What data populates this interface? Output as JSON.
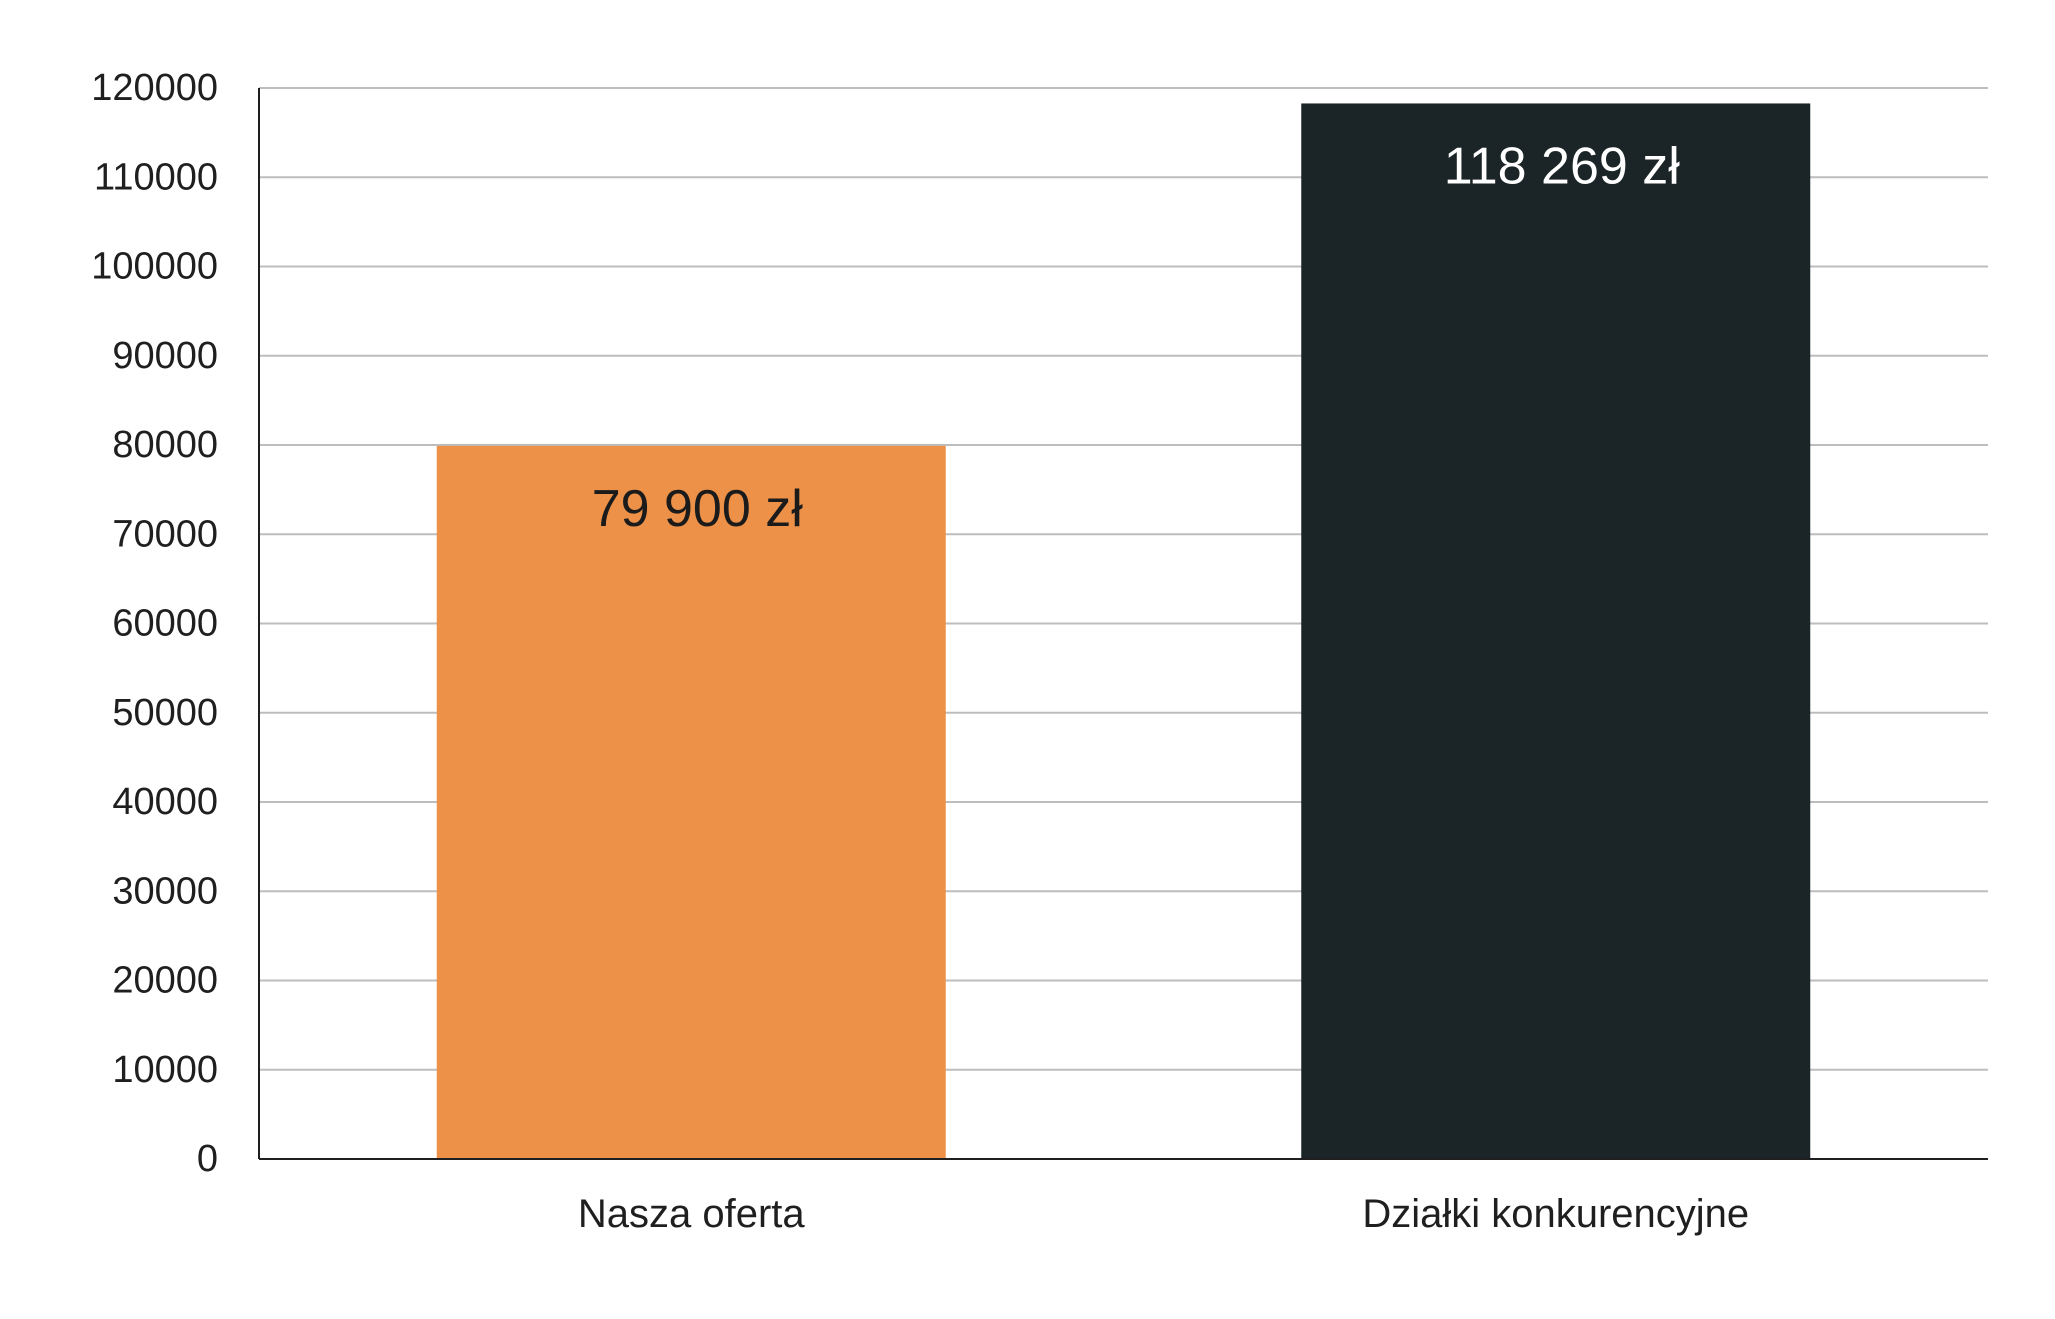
{
  "chart_data": {
    "type": "bar",
    "categories": [
      "Nasza oferta",
      "Działki konkurencyjne"
    ],
    "values": [
      79900,
      118269
    ],
    "data_labels": [
      "79 900 zł",
      "118 269 zł"
    ],
    "bar_colors": [
      "#ec9147",
      "#1b2527"
    ],
    "data_label_colors": [
      "#1b1b1b",
      "#ffffff"
    ],
    "ylim": [
      0,
      120000
    ],
    "y_ticks": [
      0,
      10000,
      20000,
      30000,
      40000,
      50000,
      60000,
      70000,
      80000,
      90000,
      100000,
      110000,
      120000
    ],
    "y_tick_labels": [
      "0",
      "10000",
      "20000",
      "30000",
      "40000",
      "50000",
      "60000",
      "70000",
      "80000",
      "90000",
      "100000",
      "110000",
      "120000"
    ],
    "grid": true,
    "legend": false,
    "title": "",
    "xlabel": "",
    "ylabel": ""
  }
}
